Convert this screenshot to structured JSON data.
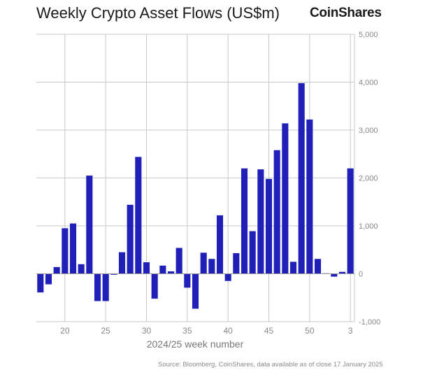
{
  "title": "Weekly Crypto Asset Flows (US$m)",
  "brand": "CoinShares",
  "source": "Source: Bloomberg, CoinShares, data available as of close 17 January 2025",
  "colors": {
    "bar": "#2020b8",
    "grid": "#c8c8c8",
    "axis_text": "#888888"
  },
  "chart_data": {
    "type": "bar",
    "xlabel": "2024/25 week number",
    "ylabel": "",
    "ylim": [
      -1000,
      5000
    ],
    "y_ticks": [
      -1000,
      0,
      1000,
      2000,
      3000,
      4000,
      5000
    ],
    "y_tick_labels": [
      "-1,000",
      "0",
      "1,000",
      "2,000",
      "3,000",
      "4,000",
      "5,000"
    ],
    "x_tick_labels": [
      "20",
      "25",
      "30",
      "35",
      "40",
      "45",
      "50",
      "3"
    ],
    "x_tick_weeks": [
      20,
      25,
      30,
      35,
      40,
      45,
      50,
      55
    ],
    "grid": true,
    "categories": [
      17,
      18,
      19,
      20,
      21,
      22,
      23,
      24,
      25,
      26,
      27,
      28,
      29,
      30,
      31,
      32,
      33,
      34,
      35,
      36,
      37,
      38,
      39,
      40,
      41,
      42,
      43,
      44,
      45,
      46,
      47,
      48,
      49,
      50,
      51,
      52,
      53,
      54,
      55
    ],
    "values": [
      -390,
      -220,
      140,
      950,
      1050,
      200,
      2050,
      -570,
      -570,
      -20,
      450,
      1440,
      2440,
      240,
      -520,
      170,
      50,
      540,
      -290,
      -730,
      440,
      310,
      1220,
      -150,
      430,
      2200,
      890,
      2180,
      1980,
      2580,
      3140,
      250,
      3980,
      3220,
      310,
      10,
      -60,
      40,
      2200
    ]
  }
}
